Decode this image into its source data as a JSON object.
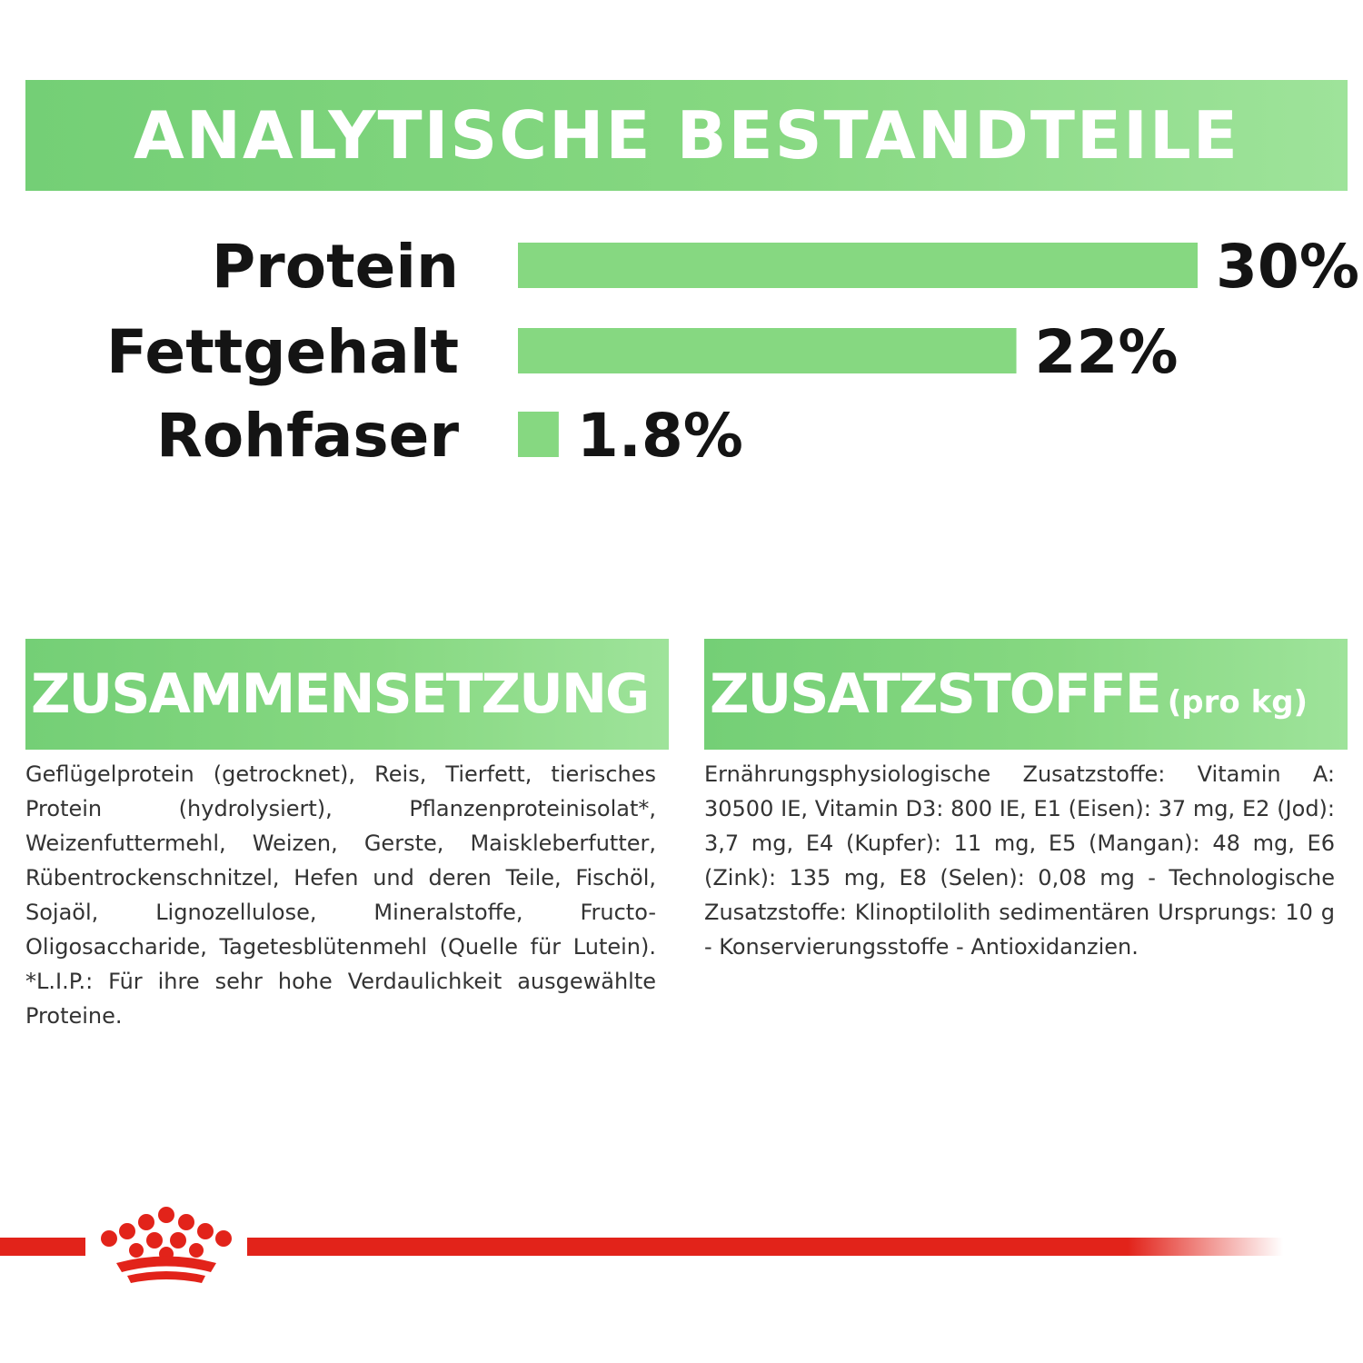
{
  "header": {
    "title": "ANALYTISCHE BESTANDTEILE"
  },
  "chart_data": {
    "type": "bar",
    "orientation": "horizontal",
    "title": "ANALYTISCHE BESTANDTEILE",
    "categories": [
      "Protein",
      "Fettgehalt",
      "Rohfaser"
    ],
    "values": [
      30,
      22,
      1.8
    ],
    "value_labels": [
      "30%",
      "22%",
      "1.8%"
    ],
    "unit": "%",
    "xlim": [
      0,
      30
    ],
    "grid": false,
    "legend": "none",
    "bar_color": "#86d881"
  },
  "composition": {
    "heading": "ZUSAMMENSETZUNG",
    "text": "Geflügelprotein (getrocknet), Reis, Tierfett, tierisches Protein (hydrolysiert), Pflanzenproteinisolat*, Weizenfuttermehl, Weizen, Gerste, Maiskleberfutter, Rübentrockenschnitzel, Hefen und deren Teile, Fischöl, Sojaöl, Lignozellulose, Mineralstoffe, Fructo-Oligosaccharide, Tagetesblütenmehl (Quelle für Lutein). *L.I.P.: Für ihre sehr hohe Verdaulichkeit ausgewählte Proteine."
  },
  "additives": {
    "heading": "ZUSATZSTOFFE",
    "heading_suffix": "(pro kg)",
    "text": "Ernährungsphysiologische Zusatzstoffe: Vitamin A: 30500 IE, Vitamin D3: 800 IE, E1 (Eisen): 37 mg, E2 (Jod): 3,7 mg, E4 (Kupfer): 11 mg, E5 (Mangan): 48 mg, E6 (Zink): 135 mg, E8 (Selen): 0,08 mg - Technologische Zusatzstoffe: Klinoptilolith sedimentären Ursprungs: 10 g - Konservierungsstoffe - Antioxidanzien."
  },
  "brand": {
    "logo_icon": "crown-icon",
    "accent_color": "#e2231a",
    "green_color": "#86d881"
  }
}
